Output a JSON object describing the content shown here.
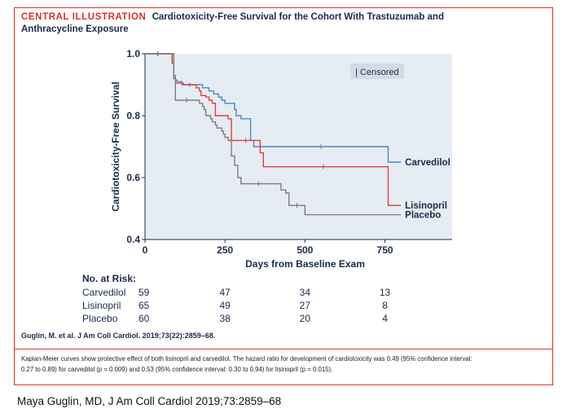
{
  "header": {
    "label": "CENTRAL ILLUSTRATION",
    "title_line1": "Cardiotoxicity-Free Survival for the Cohort With Trastuzumab and",
    "title_line2": "Anthracycline Exposure"
  },
  "citation": "Guglin, M. et al. J Am Coll Cardiol. 2019;73(22):2859–68.",
  "caption_line1": "Kaplan-Meier curves show protective effect of both lisinopril and carvedilol. The hazard ratio for development of cardiotoxicity was 0.49 (95% confidence interval:",
  "caption_line2": "0.27 to 0.89) for carvedilol (p = 0.009) and 0.53 (95% confidence interval: 0.30 to 0.94) for lisinopril (p = 0.015).",
  "footer": "Maya Guglin, MD,  J Am Coll Cardiol 2019;73:2859–68",
  "chart_data": {
    "type": "line",
    "subtype": "kaplan-meier",
    "xlabel": "Days from Baseline Exam",
    "ylabel": "Cardiotoxicity-Free Survival",
    "xlim": [
      0,
      960
    ],
    "ylim": [
      0.4,
      1.0
    ],
    "xticks": [
      0,
      250,
      500,
      750
    ],
    "yticks": [
      0.4,
      0.6,
      0.8,
      1.0
    ],
    "ytick_labels": [
      "0.4",
      "0.6",
      "0.8",
      "1.0"
    ],
    "legend_label": "| Censored",
    "series": [
      {
        "name": "Carvedilol",
        "color": "#4f87c1",
        "x": [
          0,
          80,
          85,
          90,
          95,
          100,
          115,
          165,
          180,
          200,
          215,
          230,
          240,
          250,
          280,
          285,
          300,
          330,
          340,
          760,
          800
        ],
        "y": [
          1.0,
          1.0,
          0.97,
          0.93,
          0.915,
          0.91,
          0.9,
          0.9,
          0.89,
          0.88,
          0.87,
          0.86,
          0.85,
          0.84,
          0.82,
          0.8,
          0.79,
          0.72,
          0.7,
          0.65,
          0.65
        ]
      },
      {
        "name": "Lisinopril",
        "color": "#e0403a",
        "x": [
          0,
          80,
          85,
          90,
          95,
          120,
          160,
          170,
          175,
          190,
          200,
          210,
          220,
          260,
          270,
          360,
          370,
          745,
          760,
          800
        ],
        "y": [
          1.0,
          1.0,
          0.97,
          0.92,
          0.905,
          0.9,
          0.89,
          0.88,
          0.865,
          0.86,
          0.85,
          0.84,
          0.8,
          0.79,
          0.72,
          0.68,
          0.635,
          0.635,
          0.51,
          0.51
        ]
      },
      {
        "name": "Placebo",
        "color": "#7d7d7d",
        "x": [
          0,
          80,
          90,
          95,
          165,
          170,
          180,
          185,
          190,
          205,
          210,
          220,
          225,
          240,
          245,
          250,
          260,
          270,
          280,
          290,
          300,
          410,
          425,
          440,
          450,
          500,
          800
        ],
        "y": [
          1.0,
          1.0,
          0.92,
          0.85,
          0.85,
          0.84,
          0.83,
          0.82,
          0.8,
          0.79,
          0.78,
          0.77,
          0.76,
          0.75,
          0.74,
          0.73,
          0.72,
          0.67,
          0.64,
          0.6,
          0.58,
          0.58,
          0.56,
          0.55,
          0.51,
          0.48,
          0.48
        ]
      }
    ],
    "risk_table": {
      "header": "No. at Risk:",
      "rows": [
        {
          "name": "Carvedilol",
          "values": [
            "59",
            "47",
            "34",
            "13"
          ]
        },
        {
          "name": "Lisinopril",
          "values": [
            "65",
            "49",
            "27",
            "8"
          ]
        },
        {
          "name": "Placebo",
          "values": [
            "60",
            "38",
            "20",
            "4"
          ]
        }
      ]
    }
  }
}
